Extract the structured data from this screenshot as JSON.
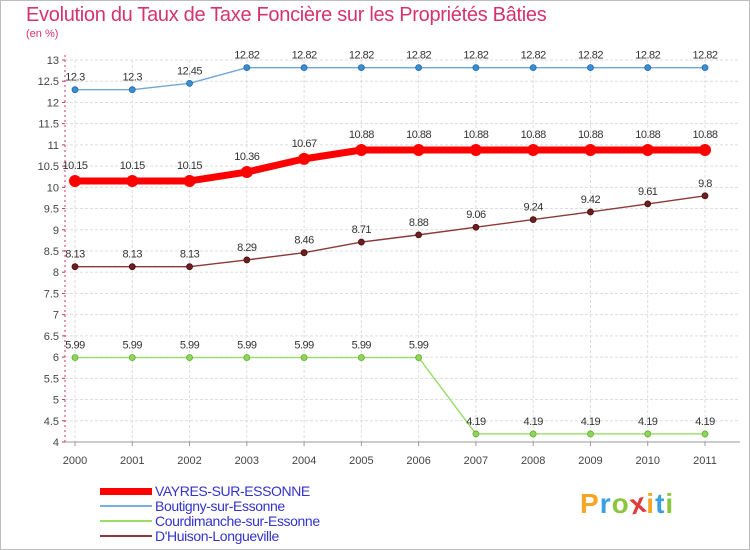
{
  "chart_data": {
    "type": "line",
    "title": "Evolution du Taux de Taxe Foncière sur les Propriétés Bâties",
    "subtitle": "(en %)",
    "x": [
      "2000",
      "2001",
      "2002",
      "2003",
      "2004",
      "2005",
      "2006",
      "2007",
      "2008",
      "2009",
      "2010",
      "2011"
    ],
    "ylim": [
      4,
      13
    ],
    "ytick_step": 0.5,
    "yticks": [
      "4",
      "4.5",
      "5",
      "5.5",
      "6",
      "6.5",
      "7",
      "7.5",
      "8",
      "8.5",
      "9",
      "9.5",
      "10",
      "10.5",
      "11",
      "11.5",
      "12",
      "12.5",
      "13"
    ],
    "grid": true,
    "legend_position": "bottom-left",
    "series": [
      {
        "name": "VAYRES-SUR-ESSONNE",
        "color": "#ff0000",
        "values": [
          10.15,
          10.15,
          10.15,
          10.36,
          10.67,
          10.88,
          10.88,
          10.88,
          10.88,
          10.88,
          10.88,
          10.88
        ],
        "labels": [
          "10.15",
          "10.15",
          "10.15",
          "10.36",
          "10.67",
          "10.88",
          "10.88",
          "10.88",
          "10.88",
          "10.88",
          "10.88",
          "10.88"
        ]
      },
      {
        "name": "Boutigny-sur-Essonne",
        "color": "#6fa8d8",
        "values": [
          12.3,
          12.3,
          12.45,
          12.82,
          12.82,
          12.82,
          12.82,
          12.82,
          12.82,
          12.82,
          12.82,
          12.82
        ],
        "labels": [
          "12.3",
          "12.3",
          "12.45",
          "12.82",
          "12.82",
          "12.82",
          "12.82",
          "12.82",
          "12.82",
          "12.82",
          "12.82",
          "12.82"
        ]
      },
      {
        "name": "Courdimanche-sur-Essonne",
        "color": "#99dd66",
        "values": [
          5.99,
          5.99,
          5.99,
          5.99,
          5.99,
          5.99,
          5.99,
          4.19,
          4.19,
          4.19,
          4.19,
          4.19
        ],
        "labels": [
          "5.99",
          "5.99",
          "5.99",
          "5.99",
          "5.99",
          "5.99",
          "5.99",
          "4.19",
          "4.19",
          "4.19",
          "4.19",
          "4.19"
        ]
      },
      {
        "name": "D'Huison-Longueville",
        "color": "#8b3a3a",
        "values": [
          8.13,
          8.13,
          8.13,
          8.29,
          8.46,
          8.71,
          8.88,
          9.06,
          9.24,
          9.42,
          9.61,
          9.8
        ],
        "labels": [
          "8.13",
          "8.13",
          "8.13",
          "8.29",
          "8.46",
          "8.71",
          "8.88",
          "9.06",
          "9.24",
          "9.42",
          "9.61",
          "9.8"
        ]
      }
    ]
  },
  "logo": {
    "letters": [
      "P",
      "r",
      "o",
      "x",
      "i",
      "t",
      "i"
    ],
    "colors": [
      "#f5a623",
      "#3aa0e0",
      "#8cc63f",
      "#e03a3a",
      "#f5a623",
      "#3aa0e0",
      "#8cc63f"
    ]
  }
}
